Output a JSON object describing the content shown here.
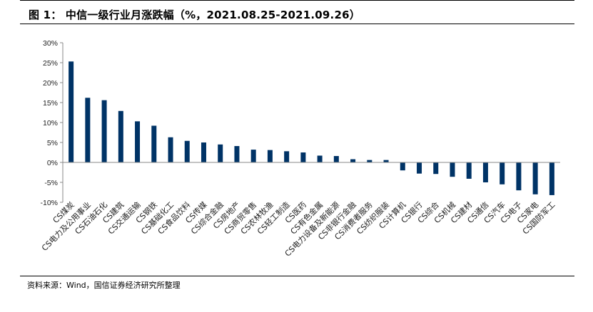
{
  "header": {
    "title": "图 1： 中信一级行业月涨跌幅（%，2021.08.25-2021.09.26）"
  },
  "footer": {
    "source": "资料来源：Wind，国信证券经济研究所整理"
  },
  "chart_data": {
    "type": "bar",
    "title": "",
    "xlabel": "",
    "ylabel": "",
    "ylim": [
      -10,
      30
    ],
    "ytick_labels": [
      "30%",
      "25%",
      "20%",
      "15%",
      "10%",
      "5%",
      "0%",
      "-5%",
      "-10%"
    ],
    "ytick_values": [
      30,
      25,
      20,
      15,
      10,
      5,
      0,
      -5,
      -10
    ],
    "grid": false,
    "legend": "none",
    "bar_color": "#003366",
    "categories": [
      "CS煤炭",
      "CS电力及公用事业",
      "CS石油石化",
      "CS建筑",
      "CS交通运输",
      "CS钢铁",
      "CS基础化工",
      "CS食品饮料",
      "CS传媒",
      "CS综合金融",
      "CS房地产",
      "CS商贸零售",
      "CS农林牧渔",
      "CS轻工制造",
      "CS医药",
      "CS有色金属",
      "CS电力设备及新能源",
      "CS非银行金融",
      "CS消费者服务",
      "CS纺织服装",
      "CS计算机",
      "CS银行",
      "CS综合",
      "CS机械",
      "CS建材",
      "CS通信",
      "CS汽车",
      "CS电子",
      "CS家电",
      "CS国防军工"
    ],
    "values": [
      25.3,
      16.2,
      15.6,
      12.9,
      10.3,
      9.2,
      6.3,
      5.4,
      5.0,
      4.5,
      4.1,
      3.2,
      3.1,
      2.8,
      2.5,
      1.7,
      1.6,
      0.8,
      0.6,
      0.6,
      -2.0,
      -2.8,
      -2.9,
      -3.6,
      -4.1,
      -5.0,
      -5.5,
      -7.0,
      -8.0,
      -8.2
    ]
  }
}
